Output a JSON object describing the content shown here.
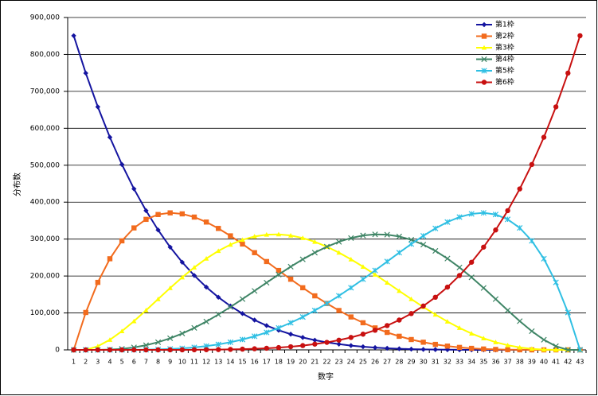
{
  "chart_data": {
    "type": "line",
    "xlabel": "数字",
    "ylabel": "分布数",
    "categories": [
      1,
      2,
      3,
      4,
      5,
      6,
      7,
      8,
      9,
      10,
      11,
      12,
      13,
      14,
      15,
      16,
      17,
      18,
      19,
      20,
      21,
      22,
      23,
      24,
      25,
      26,
      27,
      28,
      29,
      30,
      31,
      32,
      33,
      34,
      35,
      36,
      37,
      38,
      39,
      40,
      41,
      42,
      43
    ],
    "ylim": [
      0,
      900000
    ],
    "yticks": [
      {
        "value": 0,
        "label": "0"
      },
      {
        "value": 100000,
        "label": "100,000"
      },
      {
        "value": 200000,
        "label": "200,000"
      },
      {
        "value": 300000,
        "label": "300,000"
      },
      {
        "value": 400000,
        "label": "400,000"
      },
      {
        "value": 500000,
        "label": "500,000"
      },
      {
        "value": 600000,
        "label": "600,000"
      },
      {
        "value": 700000,
        "label": "700,000"
      },
      {
        "value": 800000,
        "label": "800,000"
      },
      {
        "value": 900000,
        "label": "900,000"
      }
    ],
    "grid": true,
    "legend": "upper right",
    "series": [
      {
        "name": "第1枠",
        "color": "#1414a0",
        "marker": "diamond",
        "values": [
          850668,
          749398,
          658008,
          575757,
          501942,
          435897,
          376992,
          324632,
          278256,
          237336,
          201376,
          169911,
          142506,
          118755,
          98280,
          80730,
          65780,
          53130,
          42504,
          33649,
          26334,
          20349,
          15504,
          11628,
          8568,
          6188,
          4368,
          3003,
          2002,
          1287,
          792,
          462,
          252,
          126,
          56,
          21,
          6,
          1,
          0,
          0,
          0,
          0,
          0
        ]
      },
      {
        "name": "第2枠",
        "color": "#f26b1d",
        "marker": "square",
        "values": [
          0,
          101270,
          182780,
          246753,
          295260,
          330225,
          353430,
          366520,
          371008,
          368280,
          359600,
          346115,
          328860,
          308763,
          286650,
          263250,
          239200,
          215050,
          191268,
          168245,
          146300,
          125685,
          106590,
          89148,
          73440,
          59500,
          47320,
          36855,
          28028,
          20735,
          14850,
          10230,
          6720,
          4158,
          2380,
          1225,
          540,
          185,
          38,
          0,
          0,
          0,
          0
        ]
      },
      {
        "name": "第3枠",
        "color": "#ffff00",
        "marker": "triangle",
        "values": [
          0,
          0,
          9880,
          27417,
          50616,
          77700,
          107100,
          137445,
          167552,
          196416,
          223200,
          247225,
          267960,
          285012,
          298116,
          307125,
          312000,
          312800,
          309672,
          302841,
          292600,
          279300,
          263340,
          245157,
          225216,
          204000,
          182000,
          159705,
          137592,
          116116,
          95700,
          76725,
          59520,
          44352,
          31416,
          20825,
          12600,
          6660,
          2812,
          741,
          0,
          0,
          0
        ]
      },
      {
        "name": "第4枠",
        "color": "#3f8566",
        "marker": "x",
        "values": [
          0,
          0,
          0,
          741,
          2812,
          6660,
          12600,
          20825,
          31416,
          44352,
          59520,
          76725,
          95700,
          116116,
          137592,
          159705,
          182000,
          204000,
          225216,
          245157,
          263340,
          279300,
          292600,
          302841,
          309672,
          312800,
          312000,
          307125,
          298116,
          285012,
          267960,
          247225,
          223200,
          196416,
          167552,
          137445,
          107100,
          77700,
          50616,
          27417,
          9880,
          0,
          0
        ]
      },
      {
        "name": "第5枠",
        "color": "#2fbfe3",
        "marker": "star",
        "values": [
          0,
          0,
          0,
          0,
          38,
          185,
          540,
          1225,
          2380,
          4158,
          6720,
          10230,
          14850,
          20735,
          28028,
          36855,
          47320,
          59500,
          73440,
          89148,
          106590,
          125685,
          146300,
          168245,
          191268,
          215050,
          239200,
          263250,
          286650,
          308763,
          328860,
          346115,
          359600,
          368280,
          371008,
          366520,
          353430,
          330225,
          295260,
          246753,
          182780,
          101270,
          0
        ]
      },
      {
        "name": "第6枠",
        "color": "#c81010",
        "marker": "circle",
        "values": [
          0,
          0,
          0,
          0,
          0,
          1,
          6,
          21,
          56,
          126,
          252,
          462,
          792,
          1287,
          2002,
          3003,
          4368,
          6188,
          8568,
          11628,
          15504,
          20349,
          26334,
          33649,
          42504,
          53130,
          65780,
          80730,
          98280,
          118755,
          142506,
          169911,
          201376,
          237336,
          278256,
          324632,
          376992,
          435897,
          501942,
          575757,
          658008,
          749398,
          850668
        ]
      }
    ]
  }
}
